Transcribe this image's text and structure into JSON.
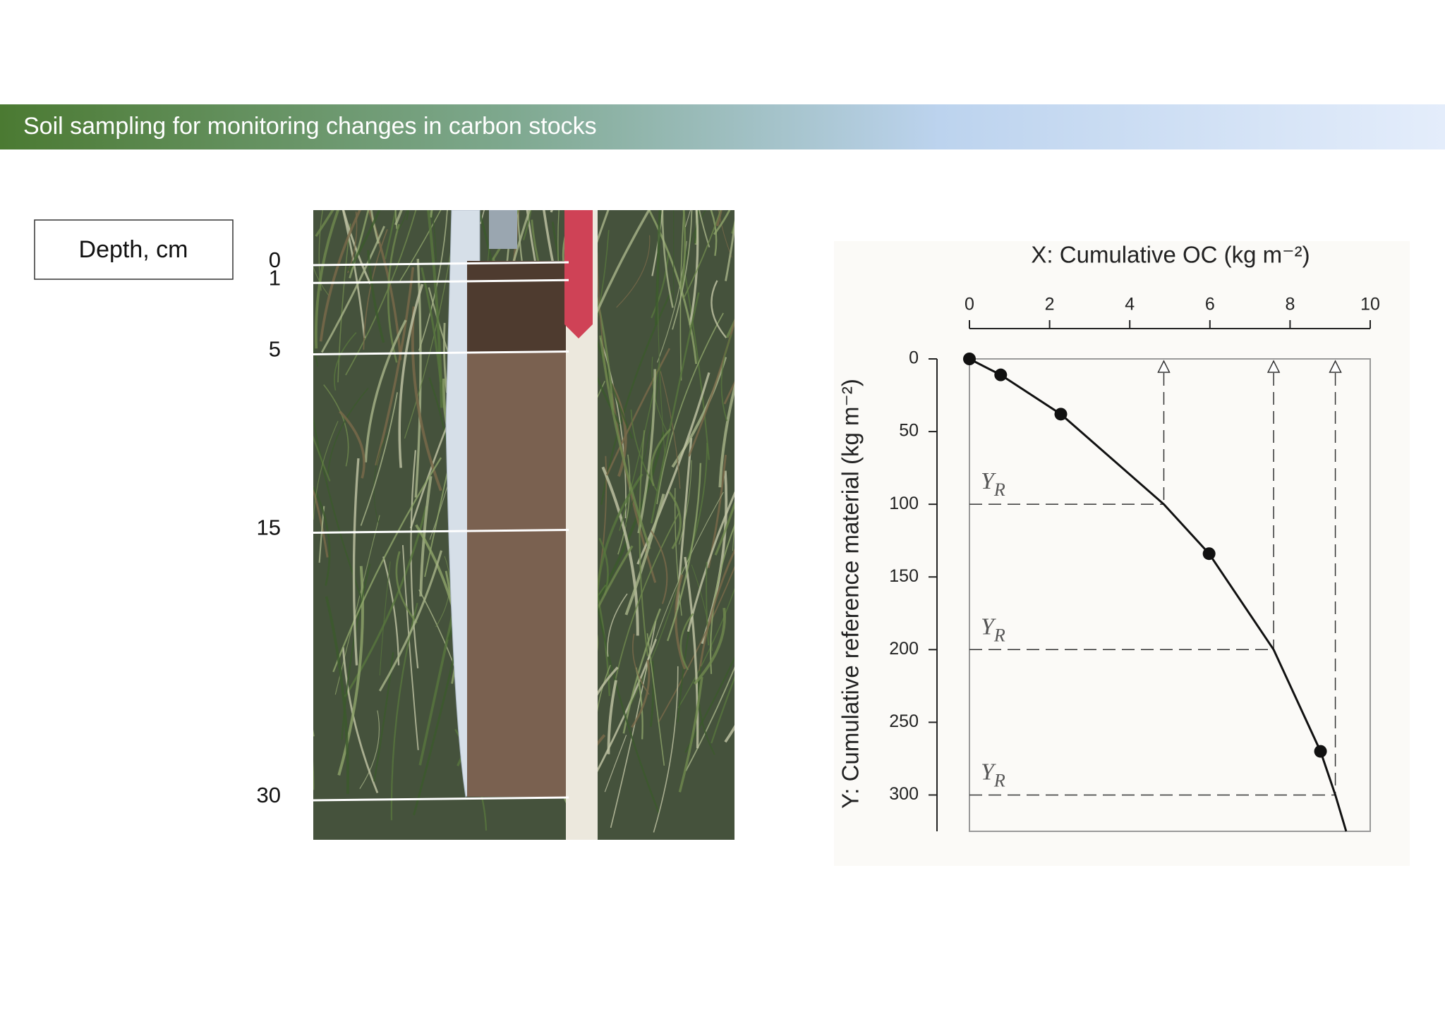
{
  "header": {
    "title": "Soil sampling for monitoring changes in carbon stocks"
  },
  "depth_box": {
    "label": "Depth, cm",
    "depths": [
      0,
      1,
      5,
      15,
      30
    ]
  },
  "chart_data": {
    "type": "scatter",
    "x_label": "X: Cumulative OC (kg m⁻²)",
    "y_label": "Y: Cumulative reference material (kg m⁻²)",
    "xlim": [
      0,
      10
    ],
    "xticks": [
      0,
      2,
      4,
      6,
      8,
      10
    ],
    "ylim": [
      0,
      325
    ],
    "yticks": [
      0,
      50,
      100,
      150,
      200,
      250,
      300
    ],
    "y_inverted": true,
    "color": "#111111",
    "points": {
      "x": [
        0,
        0.78,
        2.28,
        5.98,
        8.76
      ],
      "y": [
        0,
        11,
        38,
        134,
        270
      ]
    },
    "curve": {
      "x": [
        0,
        0.78,
        2.28,
        4.85,
        5.98,
        7.59,
        8.76,
        9.13,
        9.4
      ],
      "y": [
        0,
        11,
        38,
        100,
        134,
        200,
        270,
        300,
        325
      ]
    },
    "reference_lines": [
      {
        "y": 100,
        "x": 4.85,
        "label": "Y",
        "subscript": "R"
      },
      {
        "y": 200,
        "x": 7.59,
        "label": "Y",
        "subscript": "R"
      },
      {
        "y": 300,
        "x": 9.13,
        "label": "Y",
        "subscript": "R"
      }
    ]
  }
}
